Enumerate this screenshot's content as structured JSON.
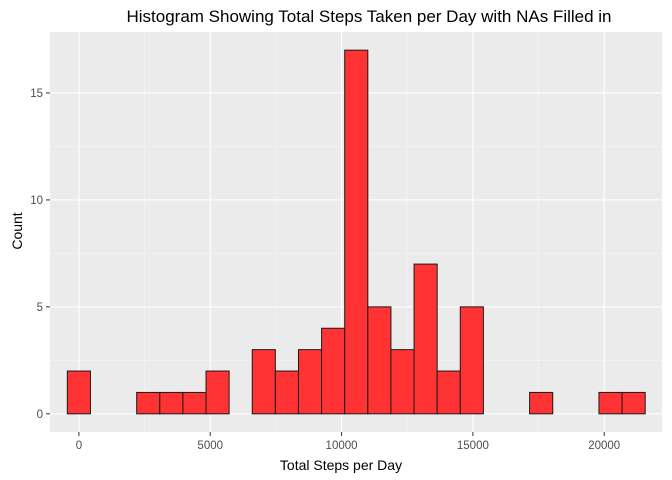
{
  "chart_data": {
    "type": "bar",
    "subtype": "histogram",
    "title": "Histogram Showing Total Steps Taken per Day with NAs Filled in",
    "xlabel": "Total Steps per Day",
    "ylabel": "Count",
    "bin_width": 880,
    "bins": [
      {
        "center": 0,
        "count": 2
      },
      {
        "center": 880,
        "count": 0
      },
      {
        "center": 1760,
        "count": 0
      },
      {
        "center": 2640,
        "count": 1
      },
      {
        "center": 3520,
        "count": 1
      },
      {
        "center": 4400,
        "count": 1
      },
      {
        "center": 5280,
        "count": 2
      },
      {
        "center": 6160,
        "count": 0
      },
      {
        "center": 7040,
        "count": 3
      },
      {
        "center": 7920,
        "count": 2
      },
      {
        "center": 8800,
        "count": 3
      },
      {
        "center": 9680,
        "count": 4
      },
      {
        "center": 10560,
        "count": 17
      },
      {
        "center": 11440,
        "count": 5
      },
      {
        "center": 12320,
        "count": 3
      },
      {
        "center": 13200,
        "count": 7
      },
      {
        "center": 14080,
        "count": 2
      },
      {
        "center": 14960,
        "count": 5
      },
      {
        "center": 15840,
        "count": 0
      },
      {
        "center": 16720,
        "count": 0
      },
      {
        "center": 17600,
        "count": 1
      },
      {
        "center": 18480,
        "count": 0
      },
      {
        "center": 19360,
        "count": 0
      },
      {
        "center": 20240,
        "count": 1
      },
      {
        "center": 21120,
        "count": 1
      }
    ],
    "x_ticks": [
      0,
      5000,
      10000,
      15000,
      20000
    ],
    "x_tick_labels": [
      "0",
      "5000",
      "10000",
      "15000",
      "20000"
    ],
    "y_ticks": [
      0,
      5,
      10,
      15
    ],
    "y_tick_labels": [
      "0",
      "5",
      "10",
      "15"
    ],
    "xlim": [
      -1100,
      22200
    ],
    "ylim": [
      -0.85,
      17.85
    ],
    "grid": true,
    "colors": {
      "bar_fill": "#ff3333",
      "bar_outline": "#1a1a1a",
      "panel_background": "#ebebeb",
      "grid_major": "#ffffff",
      "grid_minor": "#f5f5f5"
    }
  }
}
